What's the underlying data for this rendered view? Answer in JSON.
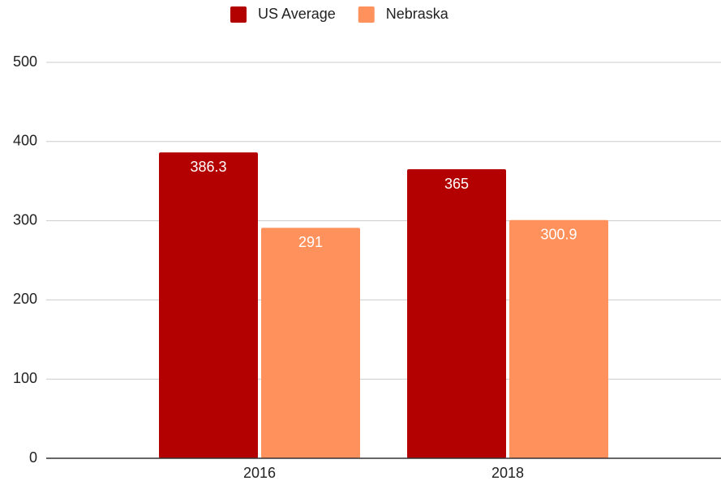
{
  "chart_data": {
    "type": "bar",
    "categories": [
      "2016",
      "2018"
    ],
    "series": [
      {
        "name": "US Average",
        "color": "#b30000",
        "values": [
          386.3,
          365
        ]
      },
      {
        "name": "Nebraska",
        "color": "#ff925c",
        "values": [
          291,
          300.9
        ]
      }
    ],
    "ylim": [
      0,
      500
    ],
    "yticks": [
      0,
      100,
      200,
      300,
      400,
      500
    ],
    "grid": true,
    "legend": "top"
  }
}
